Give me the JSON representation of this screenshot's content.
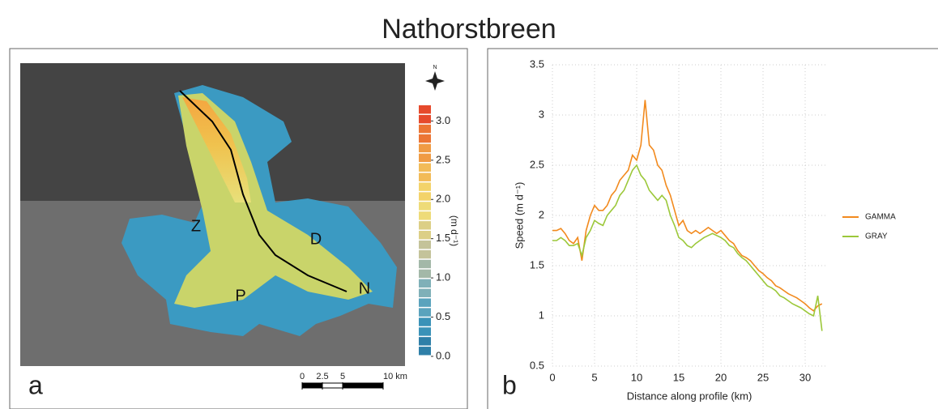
{
  "title": "Nathorstbreen",
  "map": {
    "panel_label": "a",
    "north": "N",
    "labels": [
      "Z",
      "D",
      "P",
      "N"
    ],
    "colorbar": {
      "label": "(m d⁻¹)",
      "clim": [
        0,
        3.2
      ],
      "ticks": [
        {
          "value": 0,
          "label": "0.0"
        },
        {
          "value": 0.5,
          "label": "0.5"
        },
        {
          "value": 1,
          "label": "1.0"
        },
        {
          "value": 1.5,
          "label": "1.5"
        },
        {
          "value": 2,
          "label": "2.0"
        },
        {
          "value": 2.5,
          "label": "2.5"
        },
        {
          "value": 3,
          "label": "3.0"
        }
      ]
    },
    "scale_bar": {
      "ticks": [
        0,
        2.5,
        5,
        {
          "value": 10,
          "label": "10 km"
        }
      ]
    }
  },
  "chart_data": {
    "type": "line",
    "panel_label": "b",
    "x_label": "Distance along profile (km)",
    "y_label": "Speed (m d⁻¹)",
    "x": [
      0,
      0.5,
      1,
      1.5,
      2,
      2.5,
      3,
      3.5,
      4,
      4.5,
      5,
      5.5,
      6,
      6.5,
      7,
      7.5,
      8,
      8.5,
      9,
      9.5,
      10,
      10.5,
      11,
      11.5,
      12,
      12.5,
      13,
      13.5,
      14,
      14.5,
      15,
      15.5,
      16,
      16.5,
      17,
      17.5,
      18,
      18.5,
      19,
      19.5,
      20,
      20.5,
      21,
      21.5,
      22,
      22.5,
      23,
      23.5,
      24,
      24.5,
      25,
      25.5,
      26,
      26.5,
      27,
      27.5,
      28,
      28.5,
      29,
      29.5,
      30,
      30.5,
      31,
      31.5,
      32
    ],
    "series": [
      {
        "name": "GAMMA",
        "color": "#f28a1e",
        "values": [
          1.85,
          1.85,
          1.87,
          1.82,
          1.75,
          1.72,
          1.78,
          1.55,
          1.85,
          2.0,
          2.1,
          2.05,
          2.05,
          2.1,
          2.2,
          2.25,
          2.35,
          2.4,
          2.45,
          2.6,
          2.55,
          2.7,
          3.15,
          2.7,
          2.65,
          2.5,
          2.45,
          2.3,
          2.2,
          2.05,
          1.9,
          1.95,
          1.85,
          1.82,
          1.85,
          1.82,
          1.85,
          1.88,
          1.85,
          1.82,
          1.85,
          1.8,
          1.75,
          1.72,
          1.65,
          1.6,
          1.58,
          1.55,
          1.5,
          1.45,
          1.42,
          1.38,
          1.35,
          1.3,
          1.28,
          1.25,
          1.22,
          1.2,
          1.18,
          1.15,
          1.12,
          1.08,
          1.05,
          1.1,
          1.12
        ]
      },
      {
        "name": "GRAY",
        "color": "#9cc83a",
        "values": [
          1.75,
          1.75,
          1.78,
          1.75,
          1.7,
          1.7,
          1.72,
          1.6,
          1.78,
          1.85,
          1.95,
          1.92,
          1.9,
          2.0,
          2.05,
          2.1,
          2.2,
          2.25,
          2.35,
          2.45,
          2.5,
          2.4,
          2.35,
          2.25,
          2.2,
          2.15,
          2.2,
          2.15,
          2.0,
          1.9,
          1.78,
          1.75,
          1.7,
          1.68,
          1.72,
          1.75,
          1.78,
          1.8,
          1.82,
          1.8,
          1.78,
          1.75,
          1.7,
          1.68,
          1.62,
          1.58,
          1.55,
          1.5,
          1.45,
          1.4,
          1.35,
          1.3,
          1.28,
          1.25,
          1.2,
          1.18,
          1.15,
          1.12,
          1.1,
          1.08,
          1.05,
          1.02,
          1.0,
          1.2,
          0.85
        ]
      }
    ],
    "xlim": [
      0,
      32.5
    ],
    "ylim": [
      0.5,
      3.5
    ],
    "xticks": [
      0,
      5,
      10,
      15,
      20,
      25,
      30
    ],
    "yticks": [
      0.5,
      1,
      1.5,
      2,
      2.5,
      3,
      3.5
    ],
    "grid": true
  }
}
